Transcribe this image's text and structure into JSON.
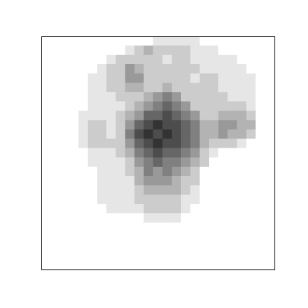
{
  "chart_data": {
    "type": "heatmap",
    "xlim": [
      0,
      25
    ],
    "ylim": [
      0,
      25
    ],
    "tick_labels": false,
    "zlim": [
      0,
      10
    ],
    "cells": [
      [
        0,
        0,
        0,
        0,
        0,
        0,
        0,
        0,
        0,
        0,
        0,
        0,
        1,
        1,
        1,
        1,
        1,
        0,
        0,
        0,
        0,
        0,
        0,
        0,
        0
      ],
      [
        0,
        0,
        0,
        0,
        0,
        0,
        0,
        0,
        0,
        1,
        2,
        3,
        2,
        2,
        2,
        2,
        1,
        1,
        1,
        0,
        0,
        0,
        0,
        0,
        0
      ],
      [
        0,
        0,
        0,
        0,
        0,
        0,
        0,
        1,
        2,
        2,
        2,
        2,
        2,
        1,
        2,
        2,
        1,
        1,
        1,
        1,
        1,
        0,
        0,
        0,
        0
      ],
      [
        0,
        0,
        0,
        0,
        0,
        0,
        1,
        2,
        2,
        4,
        3,
        2,
        2,
        2,
        2,
        2,
        2,
        1,
        1,
        1,
        1,
        1,
        0,
        0,
        0
      ],
      [
        0,
        0,
        0,
        0,
        0,
        1,
        1,
        2,
        2,
        4,
        4,
        2,
        2,
        2,
        2,
        2,
        1,
        2,
        2,
        1,
        1,
        1,
        1,
        0,
        0
      ],
      [
        0,
        0,
        0,
        0,
        0,
        1,
        1,
        2,
        2,
        3,
        3,
        2,
        2,
        3,
        2,
        2,
        2,
        2,
        2,
        1,
        1,
        1,
        1,
        0,
        0
      ],
      [
        0,
        0,
        0,
        0,
        0,
        1,
        1,
        1,
        2,
        2,
        2,
        3,
        4,
        5,
        4,
        2,
        2,
        2,
        2,
        2,
        1,
        1,
        1,
        0,
        0
      ],
      [
        0,
        0,
        0,
        0,
        0,
        1,
        1,
        1,
        1,
        2,
        3,
        4,
        5,
        6,
        5,
        4,
        2,
        2,
        2,
        2,
        2,
        2,
        1,
        0,
        0
      ],
      [
        0,
        0,
        0,
        0,
        1,
        1,
        1,
        1,
        2,
        3,
        4,
        6,
        6,
        7,
        6,
        5,
        4,
        2,
        2,
        3,
        3,
        3,
        2,
        0,
        0
      ],
      [
        0,
        0,
        0,
        0,
        1,
        2,
        2,
        1,
        2,
        4,
        6,
        7,
        8,
        7,
        7,
        6,
        5,
        3,
        3,
        4,
        4,
        3,
        3,
        0,
        0
      ],
      [
        0,
        0,
        0,
        0,
        1,
        2,
        2,
        1,
        2,
        5,
        7,
        8,
        7,
        8,
        7,
        6,
        5,
        3,
        3,
        4,
        3,
        3,
        2,
        0,
        0
      ],
      [
        0,
        0,
        0,
        0,
        1,
        2,
        2,
        2,
        2,
        4,
        6,
        7,
        8,
        7,
        7,
        6,
        5,
        3,
        2,
        2,
        2,
        1,
        0,
        0,
        0
      ],
      [
        0,
        0,
        0,
        0,
        0,
        1,
        1,
        1,
        2,
        3,
        5,
        6,
        7,
        6,
        6,
        5,
        4,
        2,
        1,
        0,
        0,
        0,
        0,
        0,
        0
      ],
      [
        0,
        0,
        0,
        0,
        0,
        1,
        1,
        1,
        1,
        2,
        4,
        5,
        6,
        5,
        5,
        4,
        3,
        2,
        0,
        0,
        0,
        0,
        0,
        0,
        0
      ],
      [
        0,
        0,
        0,
        0,
        0,
        0,
        1,
        1,
        1,
        2,
        3,
        5,
        4,
        5,
        4,
        3,
        2,
        0,
        0,
        0,
        0,
        0,
        0,
        0,
        0
      ],
      [
        0,
        0,
        0,
        0,
        0,
        0,
        1,
        1,
        1,
        1,
        3,
        4,
        4,
        4,
        3,
        2,
        2,
        0,
        0,
        0,
        0,
        0,
        0,
        0,
        0
      ],
      [
        0,
        0,
        0,
        0,
        0,
        0,
        1,
        1,
        1,
        1,
        2,
        3,
        3,
        3,
        3,
        2,
        1,
        0,
        0,
        0,
        0,
        0,
        0,
        0,
        0
      ],
      [
        0,
        0,
        0,
        0,
        0,
        0,
        1,
        1,
        1,
        1,
        2,
        2,
        2,
        2,
        2,
        1,
        1,
        0,
        0,
        0,
        0,
        0,
        0,
        0,
        0
      ],
      [
        0,
        0,
        0,
        0,
        0,
        0,
        0,
        1,
        1,
        1,
        1,
        2,
        2,
        2,
        2,
        1,
        0,
        0,
        0,
        0,
        0,
        0,
        0,
        0,
        0
      ],
      [
        0,
        0,
        0,
        0,
        0,
        0,
        0,
        0,
        0,
        0,
        0,
        1,
        1,
        1,
        1,
        0,
        0,
        0,
        0,
        0,
        0,
        0,
        0,
        0,
        0
      ],
      [
        0,
        0,
        0,
        0,
        0,
        0,
        0,
        0,
        0,
        0,
        0,
        0,
        0,
        0,
        0,
        0,
        0,
        0,
        0,
        0,
        0,
        0,
        0,
        0,
        0
      ],
      [
        0,
        0,
        0,
        0,
        0,
        0,
        0,
        0,
        0,
        0,
        0,
        0,
        0,
        0,
        0,
        0,
        0,
        0,
        0,
        0,
        0,
        0,
        0,
        0,
        0
      ],
      [
        0,
        0,
        0,
        0,
        0,
        0,
        0,
        0,
        0,
        0,
        0,
        0,
        0,
        0,
        0,
        0,
        0,
        0,
        0,
        0,
        0,
        0,
        0,
        0,
        0
      ],
      [
        0,
        0,
        0,
        0,
        0,
        0,
        0,
        0,
        0,
        0,
        0,
        0,
        0,
        0,
        0,
        0,
        0,
        0,
        0,
        0,
        0,
        0,
        0,
        0,
        0
      ],
      [
        0,
        0,
        0,
        0,
        0,
        0,
        0,
        0,
        0,
        0,
        0,
        0,
        0,
        0,
        0,
        0,
        0,
        0,
        0,
        0,
        0,
        0,
        0,
        0,
        0
      ]
    ]
  }
}
